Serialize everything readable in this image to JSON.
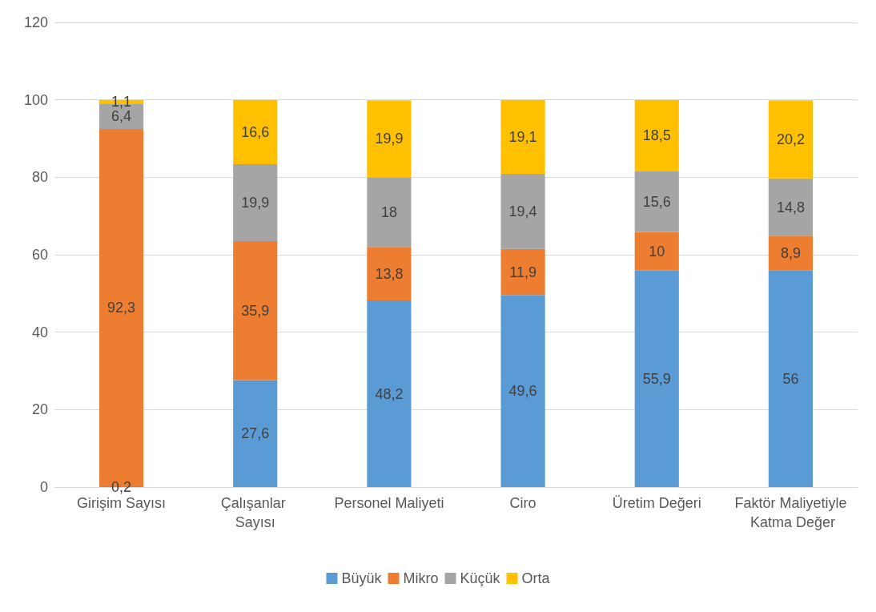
{
  "chart_data": {
    "type": "bar",
    "stacked": true,
    "categories": [
      "Girişim Sayısı",
      "Çalışanlar Sayısı",
      "Personel Maliyeti",
      "Ciro",
      "Üretim Değeri",
      "Faktör Maliyetiyle Katma Değer"
    ],
    "series": [
      {
        "name": "Büyük",
        "color": "#5b9bd5",
        "values": [
          0.2,
          27.6,
          48.2,
          49.6,
          55.9,
          56
        ],
        "value_labels": [
          "0,2",
          "27,6",
          "48,2",
          "49,6",
          "55,9",
          "56"
        ]
      },
      {
        "name": "Mikro",
        "color": "#ed7d31",
        "values": [
          92.3,
          35.9,
          13.8,
          11.9,
          10,
          8.9
        ],
        "value_labels": [
          "92,3",
          "35,9",
          "13,8",
          "11,9",
          "10",
          "8,9"
        ]
      },
      {
        "name": "Küçük",
        "color": "#a5a5a5",
        "values": [
          6.4,
          19.9,
          18,
          19.4,
          15.6,
          14.8
        ],
        "value_labels": [
          "6,4",
          "19,9",
          "18",
          "19,4",
          "15,6",
          "14,8"
        ]
      },
      {
        "name": "Orta",
        "color": "#ffc000",
        "values": [
          1.1,
          16.6,
          19.9,
          19.1,
          18.5,
          20.2
        ],
        "value_labels": [
          "1,1",
          "16,6",
          "19,9",
          "19,1",
          "18,5",
          "20,2"
        ]
      }
    ],
    "ylim": [
      0,
      120
    ],
    "yticks": [
      0,
      20,
      40,
      60,
      80,
      100,
      120
    ],
    "grid": "y",
    "legend": "bottom"
  }
}
